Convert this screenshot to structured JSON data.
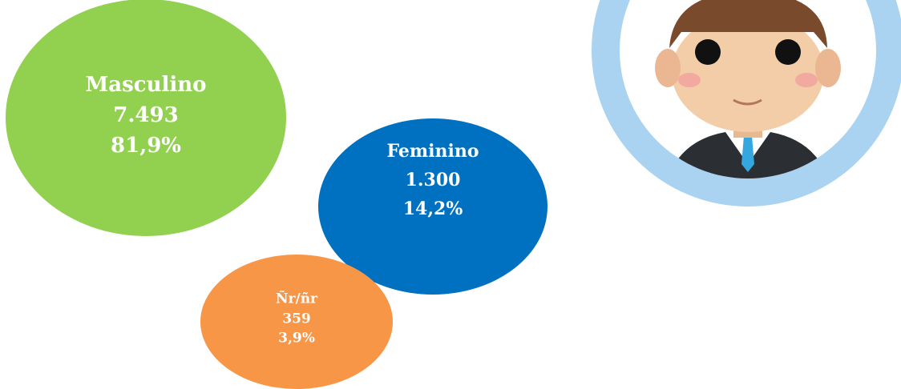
{
  "bubbles": [
    {
      "label": "Masculino",
      "count": "7.493",
      "percent": "81,9%"
    },
    {
      "label": "Feminino",
      "count": "1.300",
      "percent": "14,2%"
    },
    {
      "label": "Ñr/ñr",
      "count": "359",
      "percent": "3,9%"
    }
  ]
}
